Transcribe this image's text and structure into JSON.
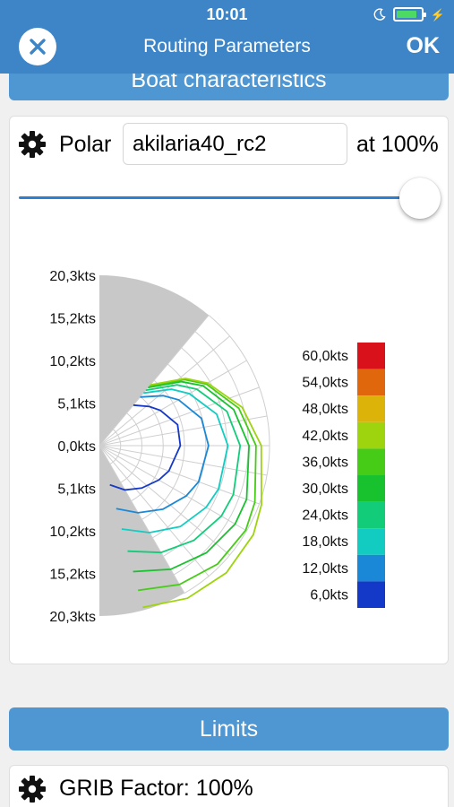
{
  "status": {
    "time": "10:01",
    "battery_level": 0.85
  },
  "nav": {
    "title": "Routing Parameters",
    "ok_label": "OK",
    "close_icon": "close-icon"
  },
  "boat": {
    "header": "Boat characteristics",
    "polar_label": "Polar",
    "polar_value": "akilaria40_rc2",
    "percent_label": "at 100%",
    "slider_value": 1.0
  },
  "chart_data": {
    "type": "polar",
    "title": "",
    "radial_labels_upper": [
      "20,3kts",
      "15,2kts",
      "10,2kts",
      "5,1kts"
    ],
    "center_label": "0,0kts",
    "radial_labels_lower": [
      "5,1kts",
      "10,2kts",
      "15,2kts",
      "20,3kts"
    ],
    "legend": {
      "labels": [
        "60,0kts",
        "54,0kts",
        "48,0kts",
        "42,0kts",
        "36,0kts",
        "30,0kts",
        "24,0kts",
        "18,0kts",
        "12,0kts",
        "6,0kts"
      ],
      "colors": [
        "#d9111a",
        "#e0670c",
        "#dcb308",
        "#9ed40d",
        "#46cc17",
        "#18c22e",
        "#12cc7a",
        "#12ccc2",
        "#1a88d6",
        "#1438c8"
      ]
    },
    "series": [
      {
        "tws": 6,
        "color": "#1438c8",
        "speeds": [
          [
            40,
            3.0
          ],
          [
            52,
            3.6
          ],
          [
            60,
            4.0
          ],
          [
            75,
            4.6
          ],
          [
            90,
            4.6
          ],
          [
            110,
            4.2
          ],
          [
            120,
            3.9
          ],
          [
            135,
            3.4
          ],
          [
            150,
            2.9
          ],
          [
            165,
            2.3
          ]
        ]
      },
      {
        "tws": 12,
        "color": "#1a88d6",
        "speeds": [
          [
            40,
            3.6
          ],
          [
            52,
            4.6
          ],
          [
            60,
            5.2
          ],
          [
            75,
            6.0
          ],
          [
            90,
            6.2
          ],
          [
            110,
            6.0
          ],
          [
            120,
            5.7
          ],
          [
            135,
            5.1
          ],
          [
            150,
            4.4
          ],
          [
            165,
            3.7
          ]
        ]
      },
      {
        "tws": 18,
        "color": "#12ccc2",
        "speeds": [
          [
            40,
            3.9
          ],
          [
            52,
            5.2
          ],
          [
            60,
            5.9
          ],
          [
            75,
            6.9
          ],
          [
            90,
            7.3
          ],
          [
            110,
            7.2
          ],
          [
            120,
            7.0
          ],
          [
            135,
            6.5
          ],
          [
            150,
            5.7
          ],
          [
            165,
            4.9
          ]
        ]
      },
      {
        "tws": 24,
        "color": "#12cc7a",
        "speeds": [
          [
            40,
            4.1
          ],
          [
            52,
            5.6
          ],
          [
            60,
            6.4
          ],
          [
            75,
            7.5
          ],
          [
            90,
            8.0
          ],
          [
            110,
            8.1
          ],
          [
            120,
            8.0
          ],
          [
            135,
            7.6
          ],
          [
            150,
            7.0
          ],
          [
            165,
            6.2
          ]
        ]
      },
      {
        "tws": 30,
        "color": "#18c22e",
        "speeds": [
          [
            40,
            4.3
          ],
          [
            52,
            5.9
          ],
          [
            60,
            6.8
          ],
          [
            75,
            7.9
          ],
          [
            90,
            8.5
          ],
          [
            110,
            8.9
          ],
          [
            120,
            8.9
          ],
          [
            135,
            8.6
          ],
          [
            150,
            8.1
          ],
          [
            165,
            7.4
          ]
        ]
      },
      {
        "tws": 36,
        "color": "#46cc17",
        "speeds": [
          [
            40,
            4.4
          ],
          [
            52,
            6.1
          ],
          [
            60,
            7.0
          ],
          [
            75,
            8.2
          ],
          [
            90,
            8.9
          ],
          [
            110,
            9.4
          ],
          [
            120,
            9.6
          ],
          [
            135,
            9.5
          ],
          [
            150,
            9.1
          ],
          [
            165,
            8.5
          ]
        ]
      },
      {
        "tws": 42,
        "color": "#9ed40d",
        "speeds": [
          [
            40,
            4.5
          ],
          [
            52,
            6.2
          ],
          [
            60,
            7.1
          ],
          [
            75,
            8.4
          ],
          [
            90,
            9.2
          ],
          [
            110,
            9.8
          ],
          [
            120,
            10.1
          ],
          [
            135,
            10.2
          ],
          [
            150,
            10.0
          ],
          [
            165,
            9.5
          ]
        ]
      }
    ],
    "r_max": 20.3,
    "dead_zone_deg": 40,
    "run_zone_deg": 150
  },
  "limits": {
    "header": "Limits",
    "grib_label": "GRIB Factor: 100%"
  }
}
